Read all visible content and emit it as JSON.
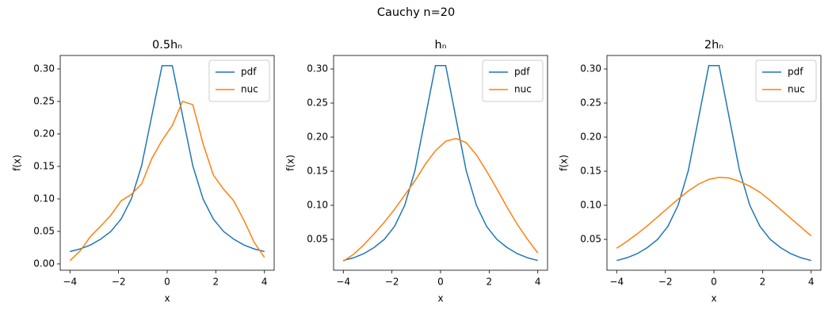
{
  "title": "Cauchy n=20",
  "chart_data": [
    {
      "type": "line",
      "title": "0.5hₙ",
      "x_label": "x",
      "y_label": "f(x)",
      "x": [
        -4,
        -3.579,
        -3.158,
        -2.737,
        -2.316,
        -1.895,
        -1.474,
        -1.053,
        -0.632,
        -0.211,
        0.211,
        0.632,
        1.053,
        1.474,
        1.895,
        2.316,
        2.737,
        3.158,
        3.579,
        4
      ],
      "series": [
        {
          "name": "pdf",
          "color": "#1f77b4",
          "values": [
            0.019,
            0.023,
            0.029,
            0.038,
            0.05,
            0.069,
            0.1,
            0.151,
            0.228,
            0.305,
            0.305,
            0.228,
            0.151,
            0.1,
            0.069,
            0.05,
            0.038,
            0.029,
            0.023,
            0.019
          ]
        },
        {
          "name": "nuc",
          "color": "#ff7f0e",
          "values": [
            0.005,
            0.02,
            0.042,
            0.058,
            0.075,
            0.097,
            0.107,
            0.123,
            0.162,
            0.19,
            0.213,
            0.25,
            0.245,
            0.185,
            0.137,
            0.115,
            0.097,
            0.067,
            0.033,
            0.01
          ]
        }
      ],
      "xlim": [
        -4.4,
        4.4
      ],
      "ylim": [
        -0.0098,
        0.3207
      ],
      "xticks": [
        {
          "value": -4,
          "label": "−4"
        },
        {
          "value": -2,
          "label": "−2"
        },
        0,
        2,
        4
      ],
      "yticks": [
        {
          "value": 0,
          "label": "0.00"
        },
        {
          "value": 0.05,
          "label": "0.05"
        },
        {
          "value": 0.1,
          "label": "0.10"
        },
        {
          "value": 0.15,
          "label": "0.15"
        },
        {
          "value": 0.2,
          "label": "0.20"
        },
        {
          "value": 0.25,
          "label": "0.25"
        },
        {
          "value": 0.3,
          "label": "0.30"
        }
      ],
      "legend": "upper right"
    },
    {
      "type": "line",
      "title": "hₙ",
      "x_label": "x",
      "y_label": "f(x)",
      "x": [
        -4,
        -3.579,
        -3.158,
        -2.737,
        -2.316,
        -1.895,
        -1.474,
        -1.053,
        -0.632,
        -0.211,
        0.211,
        0.632,
        1.053,
        1.474,
        1.895,
        2.316,
        2.737,
        3.158,
        3.579,
        4
      ],
      "series": [
        {
          "name": "pdf",
          "color": "#1f77b4",
          "values": [
            0.019,
            0.023,
            0.029,
            0.038,
            0.05,
            0.069,
            0.1,
            0.151,
            0.228,
            0.305,
            0.305,
            0.228,
            0.151,
            0.1,
            0.069,
            0.05,
            0.038,
            0.029,
            0.023,
            0.019
          ]
        },
        {
          "name": "nuc",
          "color": "#ff7f0e",
          "values": [
            0.018,
            0.028,
            0.042,
            0.058,
            0.075,
            0.094,
            0.115,
            0.136,
            0.16,
            0.18,
            0.194,
            0.198,
            0.192,
            0.174,
            0.15,
            0.124,
            0.097,
            0.072,
            0.05,
            0.03
          ]
        }
      ],
      "xlim": [
        -4.4,
        4.4
      ],
      "ylim": [
        0.0047,
        0.3198
      ],
      "xticks": [
        {
          "value": -4,
          "label": "−4"
        },
        {
          "value": -2,
          "label": "−2"
        },
        0,
        2,
        4
      ],
      "yticks": [
        {
          "value": 0.05,
          "label": "0.05"
        },
        {
          "value": 0.1,
          "label": "0.10"
        },
        {
          "value": 0.15,
          "label": "0.15"
        },
        {
          "value": 0.2,
          "label": "0.20"
        },
        {
          "value": 0.25,
          "label": "0.25"
        },
        {
          "value": 0.3,
          "label": "0.30"
        }
      ],
      "legend": "upper right"
    },
    {
      "type": "line",
      "title": "2hₙ",
      "x_label": "x",
      "y_label": "f(x)",
      "x": [
        -4,
        -3.579,
        -3.158,
        -2.737,
        -2.316,
        -1.895,
        -1.474,
        -1.053,
        -0.632,
        -0.211,
        0.211,
        0.632,
        1.053,
        1.474,
        1.895,
        2.316,
        2.737,
        3.158,
        3.579,
        4
      ],
      "series": [
        {
          "name": "pdf",
          "color": "#1f77b4",
          "values": [
            0.019,
            0.023,
            0.029,
            0.038,
            0.05,
            0.069,
            0.1,
            0.151,
            0.228,
            0.305,
            0.305,
            0.228,
            0.151,
            0.1,
            0.069,
            0.05,
            0.038,
            0.029,
            0.023,
            0.019
          ]
        },
        {
          "name": "nuc",
          "color": "#ff7f0e",
          "values": [
            0.037,
            0.047,
            0.058,
            0.07,
            0.083,
            0.096,
            0.109,
            0.121,
            0.131,
            0.138,
            0.141,
            0.14,
            0.135,
            0.128,
            0.119,
            0.107,
            0.094,
            0.081,
            0.068,
            0.055
          ]
        }
      ],
      "xlim": [
        -4.4,
        4.4
      ],
      "ylim": [
        0.0047,
        0.3198
      ],
      "xticks": [
        {
          "value": -4,
          "label": "−4"
        },
        {
          "value": -2,
          "label": "−2"
        },
        0,
        2,
        4
      ],
      "yticks": [
        {
          "value": 0.05,
          "label": "0.05"
        },
        {
          "value": 0.1,
          "label": "0.10"
        },
        {
          "value": 0.15,
          "label": "0.15"
        },
        {
          "value": 0.2,
          "label": "0.20"
        },
        {
          "value": 0.25,
          "label": "0.25"
        },
        {
          "value": 0.3,
          "label": "0.30"
        }
      ],
      "legend": "upper right"
    }
  ]
}
